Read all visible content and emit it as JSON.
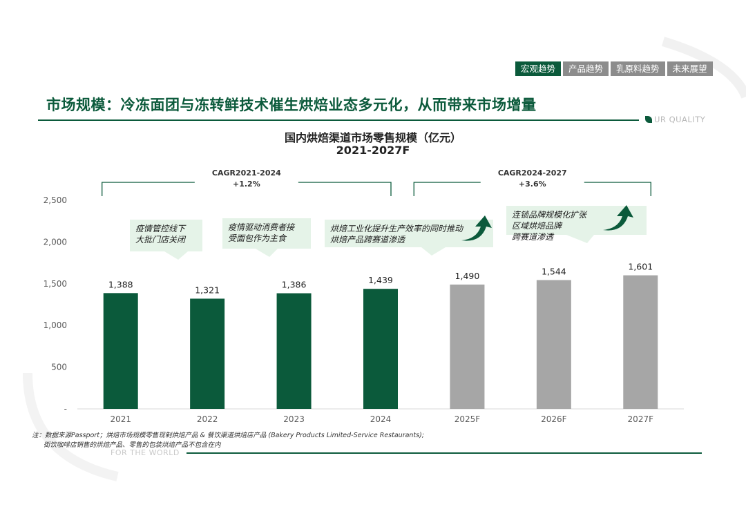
{
  "nav": {
    "tabs": [
      {
        "label": "宏观趋势",
        "active": true
      },
      {
        "label": "产品趋势",
        "active": false
      },
      {
        "label": "乳原料趋势",
        "active": false
      },
      {
        "label": "未来展望",
        "active": false
      }
    ]
  },
  "page_title": "市场规模：冷冻面团与冻转鲜技术催生烘焙业态多元化，从而带来市场增量",
  "brand_tag": "UR QUALITY",
  "footer_tag": "FOR THE WORLD",
  "colors": {
    "primary": "#0b5a3b",
    "forecast": "#a6a6a6",
    "callout_bg": "#e5f3e8"
  },
  "chart_data": {
    "type": "bar",
    "title": "国内烘焙渠道市场零售规模（亿元）",
    "subtitle": "2021-2027F",
    "categories": [
      "2021",
      "2022",
      "2023",
      "2024",
      "2025F",
      "2026F",
      "2027F"
    ],
    "values": [
      1388,
      1321,
      1386,
      1439,
      1490,
      1544,
      1601
    ],
    "value_labels": [
      "1,388",
      "1,321",
      "1,386",
      "1,439",
      "1,490",
      "1,544",
      "1,601"
    ],
    "bar_kind": [
      "actual",
      "actual",
      "actual",
      "actual",
      "forecast",
      "forecast",
      "forecast"
    ],
    "ylim": [
      0,
      2500
    ],
    "yticks": [
      0,
      500,
      1000,
      1500,
      2000,
      2500
    ],
    "ytick_labels": [
      "-",
      "500",
      "1,000",
      "1,500",
      "2,000",
      "2,500"
    ],
    "grid": false,
    "cagr": [
      {
        "label": "CAGR2021-2024",
        "value": "+1.2%"
      },
      {
        "label": "CAGR2024-2027",
        "value": "+3.6%"
      }
    ],
    "annotations": [
      {
        "lines": [
          "疫情管控线下",
          "大批门店关闭"
        ]
      },
      {
        "lines": [
          "疫情驱动消费者接",
          "受面包作为主食"
        ]
      },
      {
        "lines": [
          "烘焙工业化提升生产效率的同时推动",
          "烘焙产品跨赛道渗透"
        ]
      },
      {
        "lines": [
          "连锁品牌规模化扩张",
          "区域烘焙品牌",
          "跨赛道渗透"
        ]
      }
    ]
  },
  "notes": [
    "注：数据来源Passport；烘焙市场规模零售现制烘焙产品 & 餐饮渠道烘焙店产品 (Bakery Products Limited-Service Restaurants);",
    "街饮咖啡店销售的烘焙产品、零售的包装烘焙产品不包含在内"
  ]
}
